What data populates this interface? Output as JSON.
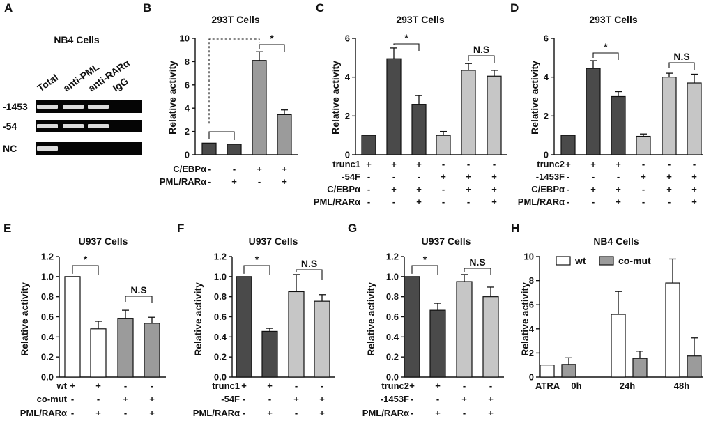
{
  "colors": {
    "dark": "#4a4a4a",
    "mid": "#9b9b9b",
    "light": "#c6c6c6",
    "white": "#ffffff"
  },
  "panelA": {
    "label": "A",
    "title": "NB4 Cells",
    "lanes": [
      "Total",
      "anti-PML",
      "anti-RARα",
      "IgG"
    ],
    "rows": [
      {
        "label": "-1453",
        "bands": [
          1,
          1,
          1,
          0
        ]
      },
      {
        "label": "-54",
        "bands": [
          1,
          1,
          1,
          0
        ]
      },
      {
        "label": "NC",
        "bands": [
          1,
          0,
          0,
          0
        ]
      }
    ]
  },
  "chart_data": [
    {
      "panel": "B",
      "type": "bar",
      "title": "293T Cells",
      "ylabel": "Relative activity",
      "ylim": [
        0,
        10
      ],
      "yticks": [
        "0",
        "2",
        "4",
        "6",
        "8",
        "10"
      ],
      "values": [
        1.0,
        0.9,
        8.1,
        3.45
      ],
      "errors": [
        0,
        0,
        0.75,
        0.4
      ],
      "colors": [
        "dark",
        "dark",
        "mid",
        "mid"
      ],
      "conditions": [
        {
          "label": "C/EBPα",
          "signs": [
            "-",
            "-",
            "+",
            "+"
          ]
        },
        {
          "label": "PML/RARα",
          "signs": [
            "-",
            "+",
            "-",
            "+"
          ]
        }
      ],
      "annotations": [
        {
          "text": "",
          "bars": [
            0,
            1
          ]
        },
        {
          "text": "*",
          "bars": [
            2,
            3
          ]
        },
        {
          "text": "",
          "bars": [
            0,
            2
          ],
          "dashed": true
        }
      ]
    },
    {
      "panel": "C",
      "type": "bar",
      "title": "293T Cells",
      "ylabel": "Relative activity",
      "ylim": [
        0,
        6
      ],
      "yticks": [
        "0",
        "2",
        "4",
        "6"
      ],
      "values": [
        1.0,
        4.95,
        2.6,
        1.0,
        4.35,
        4.05
      ],
      "errors": [
        0,
        0.55,
        0.45,
        0.2,
        0.35,
        0.3
      ],
      "colors": [
        "dark",
        "dark",
        "dark",
        "light",
        "light",
        "light"
      ],
      "conditions": [
        {
          "label": "trunc1",
          "signs": [
            "+",
            "+",
            "+",
            "-",
            "-",
            "-"
          ]
        },
        {
          "label": "-54F",
          "signs": [
            "-",
            "-",
            "-",
            "+",
            "+",
            "+"
          ]
        },
        {
          "label": "C/EBPα",
          "signs": [
            "-",
            "+",
            "+",
            "-",
            "+",
            "+"
          ]
        },
        {
          "label": "PML/RARα",
          "signs": [
            "-",
            "-",
            "+",
            "-",
            "-",
            "+"
          ]
        }
      ],
      "annotations": [
        {
          "text": "*",
          "bars": [
            1,
            2
          ]
        },
        {
          "text": "N.S",
          "bars": [
            4,
            5
          ]
        }
      ]
    },
    {
      "panel": "D",
      "type": "bar",
      "title": "293T Cells",
      "ylabel": "Relative activity",
      "ylim": [
        0,
        6
      ],
      "yticks": [
        "0",
        "2",
        "4",
        "6"
      ],
      "values": [
        1.0,
        4.45,
        3.0,
        0.95,
        4.0,
        3.7
      ],
      "errors": [
        0,
        0.4,
        0.25,
        0.12,
        0.2,
        0.45
      ],
      "colors": [
        "dark",
        "dark",
        "dark",
        "light",
        "light",
        "light"
      ],
      "conditions": [
        {
          "label": "trunc2",
          "signs": [
            "+",
            "+",
            "+",
            "-",
            "-",
            "-"
          ]
        },
        {
          "label": "-1453F",
          "signs": [
            "-",
            "-",
            "-",
            "+",
            "+",
            "+"
          ]
        },
        {
          "label": "C/EBPα",
          "signs": [
            "-",
            "+",
            "+",
            "-",
            "+",
            "+"
          ]
        },
        {
          "label": "PML/RARα",
          "signs": [
            "-",
            "-",
            "+",
            "-",
            "-",
            "+"
          ]
        }
      ],
      "annotations": [
        {
          "text": "*",
          "bars": [
            1,
            2
          ]
        },
        {
          "text": "N.S",
          "bars": [
            4,
            5
          ]
        }
      ]
    },
    {
      "panel": "E",
      "type": "bar",
      "title": "U937 Cells",
      "ylabel": "Relative activity",
      "ylim": [
        0,
        1.2
      ],
      "yticks": [
        "0.0",
        "0.2",
        "0.4",
        "0.6",
        "0.8",
        "1.0",
        "1.2"
      ],
      "values": [
        1.0,
        0.48,
        0.585,
        0.535
      ],
      "errors": [
        0,
        0.075,
        0.08,
        0.06
      ],
      "colors": [
        "white",
        "white",
        "mid",
        "mid"
      ],
      "conditions": [
        {
          "label": "wt",
          "signs": [
            "+",
            "+",
            "-",
            "-"
          ]
        },
        {
          "label": "co-mut",
          "signs": [
            "-",
            "-",
            "+",
            "+"
          ]
        },
        {
          "label": "PML/RARα",
          "signs": [
            "-",
            "+",
            "-",
            "+"
          ]
        }
      ],
      "annotations": [
        {
          "text": "*",
          "bars": [
            0,
            1
          ]
        },
        {
          "text": "N.S",
          "bars": [
            2,
            3
          ]
        }
      ]
    },
    {
      "panel": "F",
      "type": "bar",
      "title": "U937 Cells",
      "ylabel": "Relative activity",
      "ylim": [
        0,
        1.2
      ],
      "yticks": [
        "0.0",
        "0.2",
        "0.4",
        "0.6",
        "0.8",
        "1.0",
        "1.2"
      ],
      "values": [
        1.0,
        0.455,
        0.85,
        0.755
      ],
      "errors": [
        0,
        0.03,
        0.17,
        0.065
      ],
      "colors": [
        "dark",
        "dark",
        "light",
        "light"
      ],
      "conditions": [
        {
          "label": "trunc1",
          "signs": [
            "+",
            "+",
            "-",
            "-"
          ]
        },
        {
          "label": "-54F",
          "signs": [
            "-",
            "-",
            "+",
            "+"
          ]
        },
        {
          "label": "PML/RARα",
          "signs": [
            "-",
            "+",
            "-",
            "+"
          ]
        }
      ],
      "annotations": [
        {
          "text": "*",
          "bars": [
            0,
            1
          ]
        },
        {
          "text": "N.S",
          "bars": [
            2,
            3
          ]
        }
      ]
    },
    {
      "panel": "G",
      "type": "bar",
      "title": "U937 Cells",
      "ylabel": "Relative activity",
      "ylim": [
        0,
        1.2
      ],
      "yticks": [
        "0.0",
        "0.2",
        "0.4",
        "0.6",
        "0.8",
        "1.0",
        "1.2"
      ],
      "values": [
        1.0,
        0.665,
        0.95,
        0.8
      ],
      "errors": [
        0,
        0.07,
        0.07,
        0.095
      ],
      "colors": [
        "dark",
        "dark",
        "light",
        "light"
      ],
      "conditions": [
        {
          "label": "trunc2",
          "signs": [
            "+",
            "+",
            "-",
            "-"
          ]
        },
        {
          "label": "-1453F",
          "signs": [
            "-",
            "-",
            "+",
            "+"
          ]
        },
        {
          "label": "PML/RARα",
          "signs": [
            "-",
            "+",
            "-",
            "+"
          ]
        }
      ],
      "annotations": [
        {
          "text": "*",
          "bars": [
            0,
            1
          ]
        },
        {
          "text": "N.S",
          "bars": [
            2,
            3
          ]
        }
      ]
    },
    {
      "panel": "H",
      "type": "bar",
      "title": "NB4 Cells",
      "ylabel": "Relative activity",
      "ylim": [
        0,
        10
      ],
      "yticks": [
        "0",
        "2",
        "4",
        "6",
        "8",
        "10"
      ],
      "categories": [
        "0h",
        "24h",
        "48h"
      ],
      "category_prefix": "ATRA",
      "series": [
        {
          "name": "wt",
          "color": "white",
          "values": [
            1.0,
            5.2,
            7.8
          ],
          "errors": [
            0,
            1.9,
            2.0
          ]
        },
        {
          "name": "co-mut",
          "color": "mid",
          "values": [
            1.05,
            1.55,
            1.75
          ],
          "errors": [
            0.55,
            0.6,
            1.5
          ]
        }
      ],
      "legend": "top-left"
    }
  ]
}
